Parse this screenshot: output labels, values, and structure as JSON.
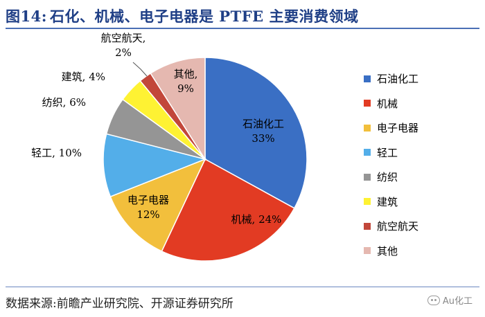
{
  "header": {
    "prefix": "图14:",
    "title": "石化、机械、电子电器是 PTFE 主要消费领域"
  },
  "chart_data": {
    "type": "pie",
    "start": "12 o'clock",
    "direction": "clockwise",
    "slices": [
      {
        "name": "石油化工",
        "value": 33,
        "color": "#3a6fc4",
        "label_inside": true
      },
      {
        "name": "机械",
        "value": 24,
        "color": "#e23b23",
        "label_inside": true
      },
      {
        "name": "电子电器",
        "value": 12,
        "color": "#f2bf3c",
        "label_inside": true
      },
      {
        "name": "轻工",
        "value": 10,
        "color": "#53aee9",
        "label_inside": false
      },
      {
        "name": "纺织",
        "value": 6,
        "color": "#959595",
        "label_inside": false
      },
      {
        "name": "建筑",
        "value": 4,
        "color": "#fef233",
        "label_inside": false
      },
      {
        "name": "航空航天",
        "value": 2,
        "color": "#c2473a",
        "label_inside": false
      },
      {
        "name": "其他",
        "value": 9,
        "color": "#e5b8b0",
        "label_inside": true
      }
    ],
    "data_labels": [
      {
        "text": "石油化工",
        "sub": "33%"
      },
      {
        "text": "机械, 24%",
        "sub": ""
      },
      {
        "text": "电子电器",
        "sub": "12%"
      },
      {
        "text": "轻工, 10%",
        "sub": ""
      },
      {
        "text": "纺织, 6%",
        "sub": ""
      },
      {
        "text": "建筑, 4%",
        "sub": ""
      },
      {
        "text": "航空航天,",
        "sub": "2%"
      },
      {
        "text": "其他,",
        "sub": "9%"
      }
    ],
    "legend_position": "right"
  },
  "footer": {
    "source": "数据来源:前瞻产业研究院、开源证券研究所",
    "watermark": "Au化工"
  }
}
